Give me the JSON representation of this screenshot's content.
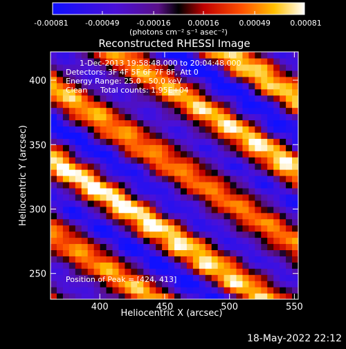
{
  "chart_data": {
    "type": "heatmap",
    "title": "Reconstructed RHESSI Image",
    "xlabel": "Heliocentric X (arcsec)",
    "ylabel": "Heliocentric Y (arcsec)",
    "xlim": [
      362,
      553
    ],
    "ylim": [
      230,
      422
    ],
    "x_ticks": [
      400,
      450,
      500,
      550
    ],
    "y_ticks": [
      250,
      300,
      350,
      400
    ],
    "colorbar": {
      "min": -0.00081,
      "max": 0.00081,
      "tick_values": [
        -0.00081,
        -0.00049,
        -0.00016,
        0.00016,
        0.00049,
        0.00081
      ],
      "tick_labels": [
        "-0.00081",
        "-0.00049",
        "-0.00016",
        "0.00016",
        "0.00049",
        "0.00081"
      ],
      "unit_label": "(photons cm⁻² s⁻¹ asec⁻²)"
    },
    "annotations": {
      "time_range": "1-Dec-2013 19:58:48.000 to 20:04:48.000",
      "detectors": "Detectors: 3F 4F 5F 6F 7F 8F, Att 0",
      "energy_range": "Energy Range: 25.0 - 50.0 keV",
      "method": "Clean",
      "total_counts": "Total counts: 1.95E+04",
      "peak_position": "Position of Peak = [424, 413]"
    },
    "stripes": {
      "angle_deg": -33,
      "period_arcsec": 48,
      "peak_arcsec": [
        424,
        413
      ]
    },
    "grid": false
  },
  "footer": {
    "timestamp": "18-May-2022 22:12"
  }
}
